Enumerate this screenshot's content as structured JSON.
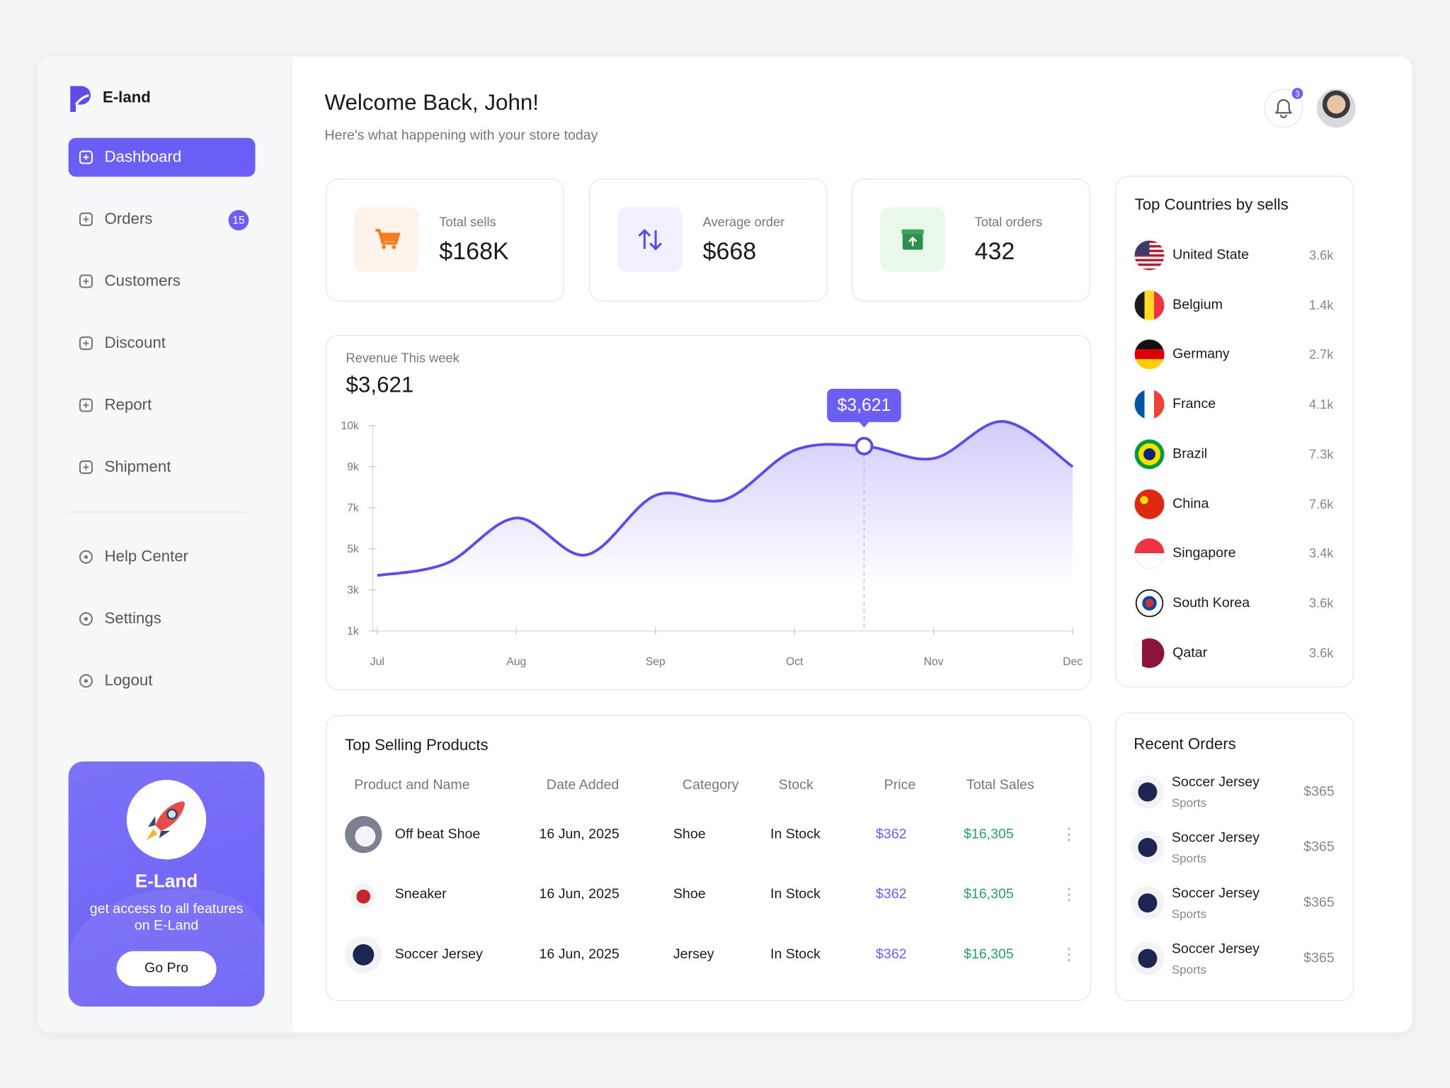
{
  "brand": "E-land",
  "nav": [
    {
      "label": "Dashboard"
    },
    {
      "label": "Orders",
      "badge": 15
    },
    {
      "label": "Customers"
    },
    {
      "label": "Discount"
    },
    {
      "label": "Report"
    },
    {
      "label": "Shipment"
    }
  ],
  "help_nav": [
    "Help Center",
    "Settings",
    "Logout"
  ],
  "promo": {
    "title": "E-Land",
    "text": "get access to all features on E-Land",
    "button": "Go Pro"
  },
  "header": {
    "title": "Welcome Back, John!",
    "subtitle": "Here's what happening with your store today",
    "notifications": 3
  },
  "stats": [
    {
      "label": "Total sells",
      "value": "$168K"
    },
    {
      "label": "Average order",
      "value": "$668"
    },
    {
      "label": "Total orders",
      "value": "432"
    }
  ],
  "chart_data": {
    "type": "line",
    "title": "Revenue This week",
    "subtitle": "$3,621",
    "annotation": "$3,621",
    "categories": [
      "Jul",
      null,
      "Aug",
      null,
      "Sep",
      null,
      "Oct",
      null,
      "Nov",
      null,
      "Dec"
    ],
    "values": [
      3700,
      4300,
      6500,
      4700,
      7600,
      7400,
      9400,
      9500,
      9200,
      10100,
      9000
    ],
    "color": "#5b4ee8",
    "ylim": [
      1000,
      10000
    ],
    "yticks": [
      {
        "value": 1000,
        "label": "1k"
      },
      {
        "value": 3000,
        "label": "3k"
      },
      {
        "value": 5000,
        "label": "5k"
      },
      {
        "value": 7000,
        "label": "7k"
      },
      {
        "value": 9000,
        "label": "9k"
      },
      {
        "value": 10000,
        "label": "10k"
      }
    ]
  },
  "countries": {
    "title": "Top Countries by sells",
    "rows": [
      {
        "name": "United State",
        "value": "3.6k"
      },
      {
        "name": "Belgium",
        "value": "1.4k"
      },
      {
        "name": "Germany",
        "value": "2.7k"
      },
      {
        "name": "France",
        "value": "4.1k"
      },
      {
        "name": "Brazil",
        "value": "7.3k"
      },
      {
        "name": "China",
        "value": "7.6k"
      },
      {
        "name": "Singapore",
        "value": "3.4k"
      },
      {
        "name": "South Korea",
        "value": "3.6k"
      },
      {
        "name": "Qatar",
        "value": "3.6k"
      }
    ]
  },
  "products": {
    "title": "Top Selling Products",
    "columns": [
      "Product and Name",
      "Date Added",
      "Category",
      "Stock",
      "Price",
      "Total Sales"
    ],
    "rows": [
      [
        "Off beat Shoe",
        "16 Jun, 2025",
        "Shoe",
        "In Stock",
        "$362",
        "$16,305"
      ],
      [
        "Sneaker",
        "16 Jun, 2025",
        "Shoe",
        "In Stock",
        "$362",
        "$16,305"
      ],
      [
        "Soccer Jersey",
        "16 Jun, 2025",
        "Jersey",
        "In Stock",
        "$362",
        "$16,305"
      ]
    ]
  },
  "orders": {
    "title": "Recent Orders",
    "rows": [
      {
        "name": "Soccer Jersey",
        "category": "Sports",
        "price": "$365"
      },
      {
        "name": "Soccer Jersey",
        "category": "Sports",
        "price": "$365"
      },
      {
        "name": "Soccer Jersey",
        "category": "Sports",
        "price": "$365"
      },
      {
        "name": "Soccer Jersey",
        "category": "Sports",
        "price": "$365"
      }
    ]
  }
}
